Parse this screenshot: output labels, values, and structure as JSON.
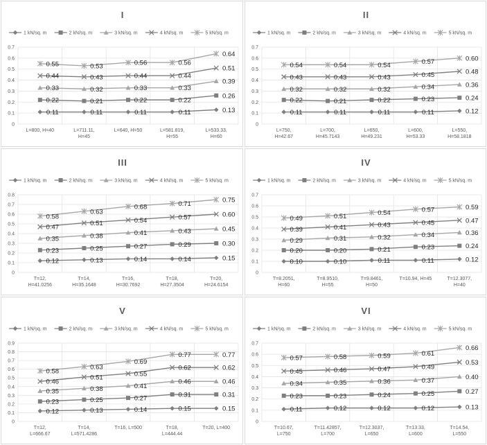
{
  "colors": {
    "series": [
      "#7f7f7f",
      "#7f7f7f",
      "#a6a6a6",
      "#7f7f7f",
      "#a6a6a6"
    ],
    "grid": "#e3e3e3",
    "text": "#595959"
  },
  "legend": [
    "1 kN/sq. m",
    "2 kN/sq. m",
    "3 kN/sq. m",
    "4 kN/sq. m",
    "5 kN/sq. m"
  ],
  "chart_data": [
    {
      "type": "line",
      "title": "I",
      "categories": [
        [
          "L=800, H=40"
        ],
        [
          "L=711.11,",
          "H=45"
        ],
        [
          "L=640, H=50"
        ],
        [
          "L=581.819,",
          "H=55"
        ],
        [
          "L=533.33,",
          "H=60"
        ]
      ],
      "yticks": [
        "0",
        "0.1",
        "0.2",
        "0.3",
        "0.4",
        "0.5",
        "0.6",
        "0.7"
      ],
      "ylim": [
        0,
        0.7
      ],
      "legend_position": "top",
      "grid": true,
      "series": [
        {
          "name": "1 kN/sq. m",
          "values": [
            0.11,
            0.11,
            0.11,
            0.11,
            0.13
          ],
          "labels": [
            "0.11",
            "0.11",
            "0.11",
            "0.11",
            "0.13"
          ]
        },
        {
          "name": "2 kN/sq. m",
          "values": [
            0.22,
            0.21,
            0.22,
            0.22,
            0.26
          ],
          "labels": [
            "0.22",
            "0.21",
            "0.22",
            "0.22",
            "0.26"
          ]
        },
        {
          "name": "3 kN/sq. m",
          "values": [
            0.33,
            0.32,
            0.33,
            0.33,
            0.39
          ],
          "labels": [
            "0.33",
            "0.32",
            "0.33",
            "0.33",
            "0.39"
          ]
        },
        {
          "name": "4 kN/sq. m",
          "values": [
            0.44,
            0.43,
            0.44,
            0.44,
            0.51
          ],
          "labels": [
            "0.44",
            "0.43",
            "0.44",
            "0.44",
            "0.51"
          ]
        },
        {
          "name": "5 kN/sq. m",
          "values": [
            0.55,
            0.53,
            0.56,
            0.56,
            0.64
          ],
          "labels": [
            "0.55",
            "0.53",
            "0.56",
            "0.56",
            "0.64"
          ]
        }
      ]
    },
    {
      "type": "line",
      "title": "II",
      "categories": [
        [
          "L=750,",
          "H=42.67"
        ],
        [
          "L=700,",
          "H=45.7143"
        ],
        [
          "L=650,",
          "H=49.231"
        ],
        [
          "L=600,",
          "H=53.33"
        ],
        [
          "L=550,",
          "H=58.1818"
        ]
      ],
      "yticks": [
        "0",
        "0.1",
        "0.2",
        "0.3",
        "0.4",
        "0.5",
        "0.6",
        "0.7"
      ],
      "ylim": [
        0,
        0.7
      ],
      "legend_position": "top",
      "grid": true,
      "series": [
        {
          "name": "1 kN/sq. m",
          "values": [
            0.11,
            0.11,
            0.11,
            0.11,
            0.12
          ],
          "labels": [
            "0.11",
            "0.11",
            "0.11",
            "0.11",
            "0.12"
          ]
        },
        {
          "name": "2 kN/sq. m",
          "values": [
            0.22,
            0.21,
            0.22,
            0.23,
            0.24
          ],
          "labels": [
            "0.22",
            "0.21",
            "0.22",
            "0.23",
            "0.24"
          ]
        },
        {
          "name": "3 kN/sq. m",
          "values": [
            0.32,
            0.32,
            0.32,
            0.34,
            0.36
          ],
          "labels": [
            "0.32",
            "0.32",
            "0.32",
            "0.34",
            "0.36"
          ]
        },
        {
          "name": "4 kN/sq. m",
          "values": [
            0.43,
            0.43,
            0.43,
            0.45,
            0.48
          ],
          "labels": [
            "0.43",
            "0.43",
            "0.43",
            "0.45",
            "0.48"
          ]
        },
        {
          "name": "5 kN/sq. m",
          "values": [
            0.54,
            0.54,
            0.54,
            0.57,
            0.6
          ],
          "labels": [
            "0.54",
            "0.54",
            "0.54",
            "0.57",
            "0.60"
          ]
        }
      ]
    },
    {
      "type": "line",
      "title": "III",
      "categories": [
        [
          "T=12,",
          "H=41.0256"
        ],
        [
          "T=14,",
          "H=35.1648"
        ],
        [
          "T=16,",
          "H=30.7692"
        ],
        [
          "T=18,",
          "H=27.3504"
        ],
        [
          "T=20,",
          "H=24.6154"
        ]
      ],
      "yticks": [
        "0",
        "0.1",
        "0.2",
        "0.3",
        "0.4",
        "0.5",
        "0.6",
        "0.7",
        "0.8"
      ],
      "ylim": [
        0,
        0.8
      ],
      "legend_position": "top",
      "grid": true,
      "series": [
        {
          "name": "1 kN/sq. m",
          "values": [
            0.12,
            0.13,
            0.14,
            0.14,
            0.15
          ],
          "labels": [
            "0.12",
            "0.13",
            "0.14",
            "0.14",
            "0.15"
          ]
        },
        {
          "name": "2 kN/sq. m",
          "values": [
            0.23,
            0.25,
            0.27,
            0.29,
            0.3
          ],
          "labels": [
            "0.23",
            "0.25",
            "0.27",
            "0.29",
            "0.30"
          ]
        },
        {
          "name": "3 kN/sq. m",
          "values": [
            0.35,
            0.38,
            0.41,
            0.43,
            0.45
          ],
          "labels": [
            "0.35",
            "0.38",
            "0.41",
            "0.43",
            "0.45"
          ]
        },
        {
          "name": "4 kN/sq. m",
          "values": [
            0.47,
            0.51,
            0.54,
            0.57,
            0.6
          ],
          "labels": [
            "0.47",
            "0.51",
            "0.54",
            "0.57",
            "0.60"
          ]
        },
        {
          "name": "5 kN/sq. m",
          "values": [
            0.58,
            0.63,
            0.68,
            0.71,
            0.75
          ],
          "labels": [
            "0.58",
            "0.63",
            "0.68",
            "0.71",
            "0.75"
          ]
        }
      ]
    },
    {
      "type": "line",
      "title": "IV",
      "categories": [
        [
          "T=8.2051,",
          "H=60"
        ],
        [
          "T=8.9510,",
          "H=55"
        ],
        [
          "T=9.8461,",
          "H=50"
        ],
        [
          "T=10.94, H=45"
        ],
        [
          "T=12.3077,",
          "H=40"
        ]
      ],
      "yticks": [
        "0",
        "0.1",
        "0.2",
        "0.3",
        "0.4",
        "0.5",
        "0.6",
        "0.7"
      ],
      "ylim": [
        0,
        0.7
      ],
      "legend_position": "top",
      "grid": true,
      "series": [
        {
          "name": "1 kN/sq. m",
          "values": [
            0.1,
            0.1,
            0.11,
            0.11,
            0.12
          ],
          "labels": [
            "0.10",
            "0.10",
            "0.11",
            "0.11",
            "0.12"
          ]
        },
        {
          "name": "2 kN/sq. m",
          "values": [
            0.2,
            0.2,
            0.21,
            0.23,
            0.24
          ],
          "labels": [
            "0.20",
            "0.20",
            "0.21",
            "0.23",
            "0.24"
          ]
        },
        {
          "name": "3 kN/sq. m",
          "values": [
            0.29,
            0.31,
            0.32,
            0.34,
            0.36
          ],
          "labels": [
            "0.29",
            "0.31",
            "0.32",
            "0.34",
            "0.36"
          ]
        },
        {
          "name": "4 kN/sq. m",
          "values": [
            0.39,
            0.41,
            0.43,
            0.45,
            0.47
          ],
          "labels": [
            "0.39",
            "0.41",
            "0.43",
            "0.45",
            "0.47"
          ]
        },
        {
          "name": "5 kN/sq. m",
          "values": [
            0.49,
            0.51,
            0.54,
            0.57,
            0.59
          ],
          "labels": [
            "0.49",
            "0.51",
            "0.54",
            "0.57",
            "0.59"
          ]
        }
      ]
    },
    {
      "type": "line",
      "title": "V",
      "categories": [
        [
          "T=12,",
          "L=666.67"
        ],
        [
          "T=14,",
          "L=571.4286"
        ],
        [
          "T=16, L=500"
        ],
        [
          "T=18,",
          "L=444.44"
        ],
        [
          "T=20, L=400"
        ]
      ],
      "yticks": [
        "0",
        "0.1",
        "0.2",
        "0.3",
        "0.4",
        "0.5",
        "0.6",
        "0.7",
        "0.8",
        "0.9"
      ],
      "ylim": [
        0,
        0.9
      ],
      "legend_position": "top",
      "grid": true,
      "series": [
        {
          "name": "1 kN/sq. m",
          "values": [
            0.12,
            0.13,
            0.14,
            0.15,
            0.15
          ],
          "labels": [
            "0.12",
            "0.13",
            "0.14",
            "0.15",
            "0.15"
          ]
        },
        {
          "name": "2 kN/sq. m",
          "values": [
            0.23,
            0.25,
            0.27,
            0.31,
            0.31
          ],
          "labels": [
            "0.23",
            "0.25",
            "0.27",
            "0.31",
            "0.31"
          ]
        },
        {
          "name": "3 kN/sq. m",
          "values": [
            0.35,
            0.38,
            0.41,
            0.46,
            0.46
          ],
          "labels": [
            "0.35",
            "0.38",
            "0.41",
            "0.46",
            "0.46"
          ]
        },
        {
          "name": "4 kN/sq. m",
          "values": [
            0.46,
            0.51,
            0.55,
            0.62,
            0.62
          ],
          "labels": [
            "0.46",
            "0.51",
            "0.55",
            "0.62",
            "0.62"
          ]
        },
        {
          "name": "5 kN/sq. m",
          "values": [
            0.58,
            0.63,
            0.69,
            0.77,
            0.77
          ],
          "labels": [
            "0.58",
            "0.63",
            "0.69",
            "0.77",
            "0.77"
          ]
        }
      ]
    },
    {
      "type": "line",
      "title": "VI",
      "categories": [
        [
          "T=10.67,",
          "L=750"
        ],
        [
          "T=11.42857,",
          "L=700"
        ],
        [
          "T=12.3037,",
          "L=650"
        ],
        [
          "T=13.33,",
          "L=600"
        ],
        [
          "T=14.54,",
          "L=550"
        ]
      ],
      "yticks": [
        "0",
        "0.1",
        "0.2",
        "0.3",
        "0.4",
        "0.5",
        "0.6",
        "0.7"
      ],
      "ylim": [
        0,
        0.7
      ],
      "legend_position": "top",
      "grid": true,
      "series": [
        {
          "name": "1 kN/sq. m",
          "values": [
            0.11,
            0.12,
            0.12,
            0.12,
            0.13
          ],
          "labels": [
            "0.11",
            "0.12",
            "0.12",
            "0.12",
            "0.13"
          ]
        },
        {
          "name": "2 kN/sq. m",
          "values": [
            0.23,
            0.23,
            0.24,
            0.25,
            0.27
          ],
          "labels": [
            "0.23",
            "0.23",
            "0.24",
            "0.25",
            "0.27"
          ]
        },
        {
          "name": "3 kN/sq. m",
          "values": [
            0.34,
            0.35,
            0.36,
            0.37,
            0.4
          ],
          "labels": [
            "0.34",
            "0.35",
            "0.36",
            "0.37",
            "0.40"
          ]
        },
        {
          "name": "4 kN/sq. m",
          "values": [
            0.45,
            0.46,
            0.47,
            0.49,
            0.53
          ],
          "labels": [
            "0.45",
            "0.46",
            "0.47",
            "0.49",
            "0.53"
          ]
        },
        {
          "name": "5 kN/sq. m",
          "values": [
            0.57,
            0.58,
            0.59,
            0.61,
            0.66
          ],
          "labels": [
            "0.57",
            "0.58",
            "0.59",
            "0.61",
            "0.66"
          ]
        }
      ]
    }
  ]
}
